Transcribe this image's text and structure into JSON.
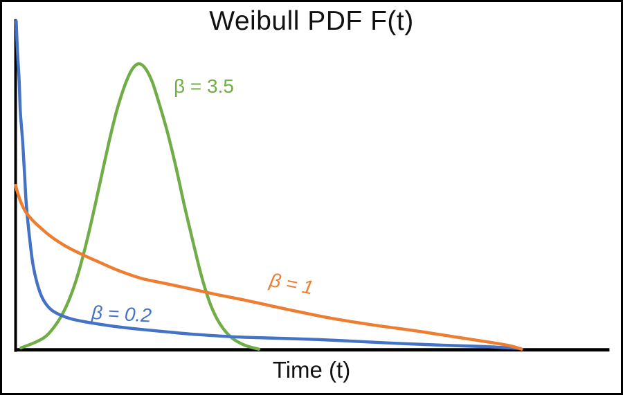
{
  "chart_data": {
    "type": "line",
    "title": "Weibull PDF F(t)",
    "xlabel": "Time (t)",
    "ylabel": "",
    "legend": "none",
    "gridlines": false,
    "axis_ranges": {
      "x": [
        0,
        1
      ],
      "y": [
        0,
        1
      ],
      "units": "normalized (axes have no tick labels)"
    },
    "axis_color": "#000000",
    "text_color": "#111111",
    "background": "#ffffff",
    "border_color": "#000000",
    "series": [
      {
        "id": "beta-3.5",
        "label": "β = 3.5",
        "beta": 3.5,
        "color": "#70AD47",
        "label_pos": [
          0.266,
          0.832
        ],
        "label_rotation": 0,
        "label_italic": false,
        "points": [
          [
            0.009,
            0.006
          ],
          [
            0.031,
            0.021
          ],
          [
            0.051,
            0.041
          ],
          [
            0.069,
            0.079
          ],
          [
            0.085,
            0.13
          ],
          [
            0.1,
            0.199
          ],
          [
            0.114,
            0.286
          ],
          [
            0.128,
            0.389
          ],
          [
            0.142,
            0.503
          ],
          [
            0.156,
            0.617
          ],
          [
            0.17,
            0.72
          ],
          [
            0.184,
            0.799
          ],
          [
            0.196,
            0.847
          ],
          [
            0.207,
            0.865
          ],
          [
            0.218,
            0.853
          ],
          [
            0.23,
            0.812
          ],
          [
            0.242,
            0.745
          ],
          [
            0.256,
            0.658
          ],
          [
            0.27,
            0.555
          ],
          [
            0.284,
            0.441
          ],
          [
            0.299,
            0.327
          ],
          [
            0.314,
            0.219
          ],
          [
            0.329,
            0.135
          ],
          [
            0.345,
            0.077
          ],
          [
            0.364,
            0.037
          ],
          [
            0.386,
            0.014
          ],
          [
            0.41,
            0.002
          ]
        ]
      },
      {
        "id": "beta-0.2",
        "label": "β = 0.2",
        "beta": 0.2,
        "color": "#4472C4",
        "label_pos": [
          0.129,
          0.155
        ],
        "label_rotation": 3,
        "label_italic": true,
        "points": [
          [
            0.001,
            0.994
          ],
          [
            0.003,
            0.907
          ],
          [
            0.006,
            0.814
          ],
          [
            0.008,
            0.72
          ],
          [
            0.012,
            0.627
          ],
          [
            0.015,
            0.534
          ],
          [
            0.018,
            0.441
          ],
          [
            0.023,
            0.348
          ],
          [
            0.029,
            0.261
          ],
          [
            0.036,
            0.203
          ],
          [
            0.045,
            0.157
          ],
          [
            0.057,
            0.126
          ],
          [
            0.072,
            0.108
          ],
          [
            0.095,
            0.093
          ],
          [
            0.129,
            0.081
          ],
          [
            0.17,
            0.07
          ],
          [
            0.21,
            0.062
          ],
          [
            0.256,
            0.054
          ],
          [
            0.308,
            0.046
          ],
          [
            0.372,
            0.039
          ],
          [
            0.441,
            0.035
          ],
          [
            0.51,
            0.031
          ],
          [
            0.58,
            0.025
          ],
          [
            0.649,
            0.019
          ],
          [
            0.718,
            0.014
          ],
          [
            0.787,
            0.01
          ],
          [
            0.851,
            0.004
          ]
        ]
      },
      {
        "id": "beta-1",
        "label": "β = 1",
        "beta": 1,
        "color": "#ED7D31",
        "label_pos": [
          0.43,
          0.253
        ],
        "label_rotation": 11,
        "label_italic": true,
        "points": [
          [
            0.0,
            0.497
          ],
          [
            0.007,
            0.455
          ],
          [
            0.016,
            0.42
          ],
          [
            0.028,
            0.393
          ],
          [
            0.042,
            0.369
          ],
          [
            0.06,
            0.342
          ],
          [
            0.083,
            0.315
          ],
          [
            0.11,
            0.29
          ],
          [
            0.141,
            0.265
          ],
          [
            0.173,
            0.24
          ],
          [
            0.21,
            0.217
          ],
          [
            0.251,
            0.201
          ],
          [
            0.291,
            0.186
          ],
          [
            0.337,
            0.168
          ],
          [
            0.395,
            0.147
          ],
          [
            0.464,
            0.12
          ],
          [
            0.533,
            0.095
          ],
          [
            0.603,
            0.075
          ],
          [
            0.672,
            0.058
          ],
          [
            0.741,
            0.039
          ],
          [
            0.799,
            0.023
          ],
          [
            0.834,
            0.012
          ],
          [
            0.853,
            0.002
          ]
        ]
      }
    ]
  }
}
